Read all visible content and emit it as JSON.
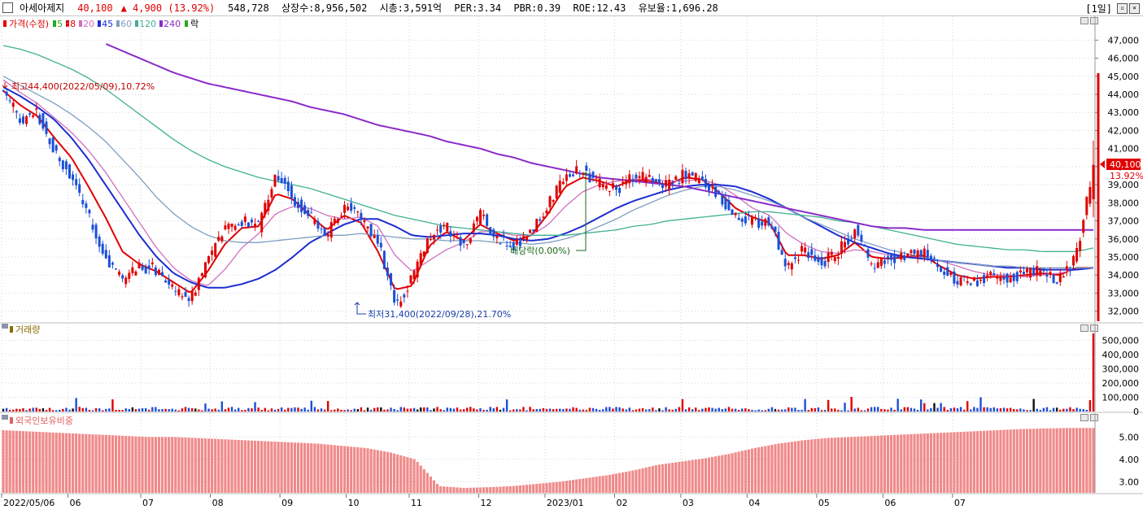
{
  "header": {
    "stock_name": "아세아제지",
    "price": "40,100",
    "change": "▲ 4,900",
    "change_pct": "(13.92%)",
    "volume": "548,728",
    "listed_shares": "상장수:8,956,502",
    "market_cap": "시총:3,591억",
    "per": "PER:3.34",
    "pbr": "PBR:0.39",
    "roe": "ROE:12.43",
    "float": "유보율:1,696.28",
    "period": "[1일]"
  },
  "legend": {
    "price_label": "가격(수정)",
    "ma": [
      {
        "label": "5",
        "color": "#22aa22"
      },
      {
        "label": "8",
        "color": "#e00000"
      },
      {
        "label": "20",
        "color": "#d070c0"
      },
      {
        "label": "45",
        "color": "#1c2ed0"
      },
      {
        "label": "60",
        "color": "#7f9ec0"
      },
      {
        "label": "120",
        "color": "#40b090"
      },
      {
        "label": "240",
        "color": "#8a2bc8"
      }
    ],
    "drop_label": "락",
    "volume_label": "거래량",
    "foreign_label": "외국인보유비중"
  },
  "annotations": {
    "high": "최고44,400(2022/05/09),10.72%",
    "low": "최저31,400(2022/09/28),21.70%",
    "dividend": "배당락(0.00%)"
  },
  "price_tag": {
    "value": "40,100",
    "pct": "13.92%"
  },
  "colors": {
    "up": "#e00000",
    "down": "#1a4fd8",
    "accent_bg": "#e00000"
  },
  "chart_data": [
    {
      "type": "candlestick",
      "panel": "price",
      "y_ticks": [
        "47,000",
        "46,000",
        "45,000",
        "44,000",
        "43,000",
        "42,000",
        "41,000",
        "40,000",
        "39,000",
        "38,000",
        "37,000",
        "36,000",
        "35,000",
        "34,000",
        "33,000",
        "32,000"
      ],
      "ylim": [
        31400,
        47600
      ],
      "x_labels": [
        "2022/05/06",
        "06",
        "07",
        "08",
        "09",
        "10",
        "11",
        "12",
        "2023/01",
        "02",
        "03",
        "04",
        "05",
        "06",
        "07"
      ],
      "anchor_closes": [
        44200,
        42500,
        43000,
        40800,
        39500,
        37200,
        35000,
        33600,
        34500,
        34300,
        33200,
        32700,
        34900,
        36500,
        37000,
        36600,
        39800,
        38300,
        37200,
        36200,
        37900,
        37100,
        35800,
        32300,
        33800,
        36200,
        36700,
        35500,
        37400,
        36000,
        35700,
        36300,
        38000,
        39500,
        39800,
        39000,
        38700,
        39500,
        39300,
        38900,
        39600,
        39200,
        38400,
        37300,
        37000,
        36900,
        34500,
        35500,
        34600,
        35300,
        36500,
        34300,
        34900,
        35100,
        35200,
        34300,
        33700,
        33600,
        34000,
        33800,
        34100,
        34200,
        33700,
        35100,
        40100
      ],
      "ma": [
        {
          "name": "8",
          "values": [
            44200,
            43400,
            42800,
            41600,
            40500,
            38900,
            37200,
            35300,
            34600,
            34200,
            33600,
            33000,
            34200,
            35700,
            36600,
            36700,
            38500,
            38200,
            37300,
            36500,
            37300,
            36900,
            35300,
            33200,
            33400,
            35600,
            36400,
            35900,
            36800,
            36300,
            35900,
            36200,
            37400,
            38900,
            39400,
            39200,
            38900,
            39300,
            39200,
            39000,
            39400,
            39300,
            38600,
            37700,
            37200,
            36900,
            35100,
            35100,
            34900,
            35100,
            35800,
            35000,
            34900,
            35000,
            35100,
            34500,
            34000,
            33800,
            33900,
            33900,
            34000,
            34100,
            34000,
            34400,
            34400
          ]
        },
        {
          "name": "20",
          "values": [
            44800,
            44100,
            43500,
            42700,
            41900,
            40900,
            39700,
            38300,
            36900,
            35500,
            34400,
            33700,
            33400,
            34300,
            35500,
            36300,
            37400,
            37800,
            37700,
            37300,
            37100,
            37200,
            36700,
            35100,
            34200,
            34800,
            35400,
            35800,
            36400,
            36400,
            36200,
            36200,
            36800,
            37800,
            38600,
            39000,
            39200,
            39300,
            39300,
            39200,
            39200,
            39300,
            39000,
            38400,
            37700,
            37300,
            36300,
            35700,
            35300,
            35200,
            35400,
            35300,
            35100,
            35000,
            35000,
            34800,
            34500,
            34200,
            34000,
            34000,
            33900,
            34000,
            34100,
            34300,
            34400
          ]
        },
        {
          "name": "45",
          "values": [
            44400,
            43900,
            43300,
            42600,
            41600,
            40400,
            39000,
            37600,
            36200,
            35000,
            34100,
            33600,
            33300,
            33300,
            33500,
            33800,
            34300,
            35000,
            35800,
            36300,
            36800,
            37100,
            37100,
            36700,
            36200,
            36100,
            36200,
            36300,
            36300,
            36200,
            36000,
            35900,
            36000,
            36300,
            36700,
            37200,
            37700,
            38100,
            38400,
            38700,
            38900,
            39000,
            39000,
            38900,
            38600,
            38200,
            37700,
            37200,
            36700,
            36200,
            35800,
            35500,
            35200,
            35000,
            34900,
            34800,
            34700,
            34600,
            34500,
            34400,
            34400,
            34300,
            34300,
            34300,
            34400
          ]
        },
        {
          "name": "60",
          "values": [
            45000,
            44500,
            44000,
            43500,
            42900,
            42200,
            41400,
            40400,
            39400,
            38300,
            37400,
            36700,
            36200,
            35900,
            35800,
            35800,
            35900,
            36000,
            36100,
            36200,
            36200,
            36300,
            36200,
            36100,
            36000,
            36000,
            35900,
            35900,
            35900,
            35800,
            35800,
            35700,
            35800,
            36000,
            36300,
            36700,
            37100,
            37600,
            38000,
            38400,
            38700,
            38900,
            38900,
            38700,
            38400,
            38100,
            37700,
            37200,
            36800,
            36400,
            36000,
            35700,
            35400,
            35200,
            35000,
            34800,
            34700,
            34600,
            34500,
            34500,
            34400,
            34400,
            34400,
            34400,
            34400
          ]
        },
        {
          "name": "120",
          "values": [
            46700,
            46500,
            46200,
            45800,
            45400,
            44900,
            44300,
            43600,
            42900,
            42200,
            41500,
            40900,
            40400,
            40000,
            39700,
            39400,
            39200,
            39000,
            38800,
            38500,
            38200,
            37900,
            37600,
            37300,
            37100,
            36900,
            36700,
            36600,
            36500,
            36400,
            36300,
            36200,
            36200,
            36200,
            36300,
            36400,
            36500,
            36700,
            36800,
            37000,
            37100,
            37200,
            37300,
            37400,
            37500,
            37500,
            37400,
            37300,
            37200,
            37000,
            36900,
            36700,
            36500,
            36300,
            36100,
            35900,
            35700,
            35600,
            35500,
            35400,
            35400,
            35300,
            35300,
            35300,
            35500
          ]
        },
        {
          "name": "240",
          "values": [
            null,
            null,
            null,
            null,
            null,
            null,
            46800,
            46400,
            46000,
            45600,
            45200,
            44900,
            44600,
            44400,
            44200,
            44000,
            43800,
            43600,
            43300,
            43100,
            42900,
            42600,
            42300,
            42100,
            41900,
            41700,
            41400,
            41200,
            41000,
            40700,
            40500,
            40200,
            40000,
            39800,
            39600,
            39400,
            39300,
            39200,
            39100,
            39000,
            38900,
            38700,
            38500,
            38300,
            38100,
            37900,
            37700,
            37500,
            37300,
            37100,
            36900,
            36700,
            36600,
            36600,
            36500,
            36500,
            36500,
            36500,
            36500,
            36500,
            36500,
            36500,
            36500,
            36500,
            36500
          ]
        }
      ]
    },
    {
      "type": "bar",
      "panel": "volume",
      "y_ticks": [
        "500,000",
        "400,000",
        "300,000",
        "200,000",
        "100,000",
        "0"
      ],
      "ylim": [
        0,
        560000
      ],
      "last_value": 548728
    },
    {
      "type": "bar",
      "panel": "foreign_ownership",
      "y_ticks": [
        "5.00",
        "4.00",
        "3.00"
      ],
      "ylim": [
        2.5,
        5.7
      ],
      "anchor_values": [
        5.3,
        5.25,
        5.2,
        5.15,
        5.1,
        5.05,
        5.0,
        5.0,
        4.95,
        4.9,
        4.85,
        4.8,
        4.75,
        4.7,
        4.6,
        4.5,
        4.3,
        4.0,
        2.8,
        2.72,
        2.75,
        2.8,
        2.9,
        3.0,
        3.15,
        3.3,
        3.5,
        3.75,
        3.9,
        4.05,
        4.25,
        4.5,
        4.7,
        4.85,
        4.95,
        5.0,
        5.05,
        5.1,
        5.15,
        5.2,
        5.25,
        5.3,
        5.35,
        5.38,
        5.4,
        5.4
      ]
    }
  ]
}
